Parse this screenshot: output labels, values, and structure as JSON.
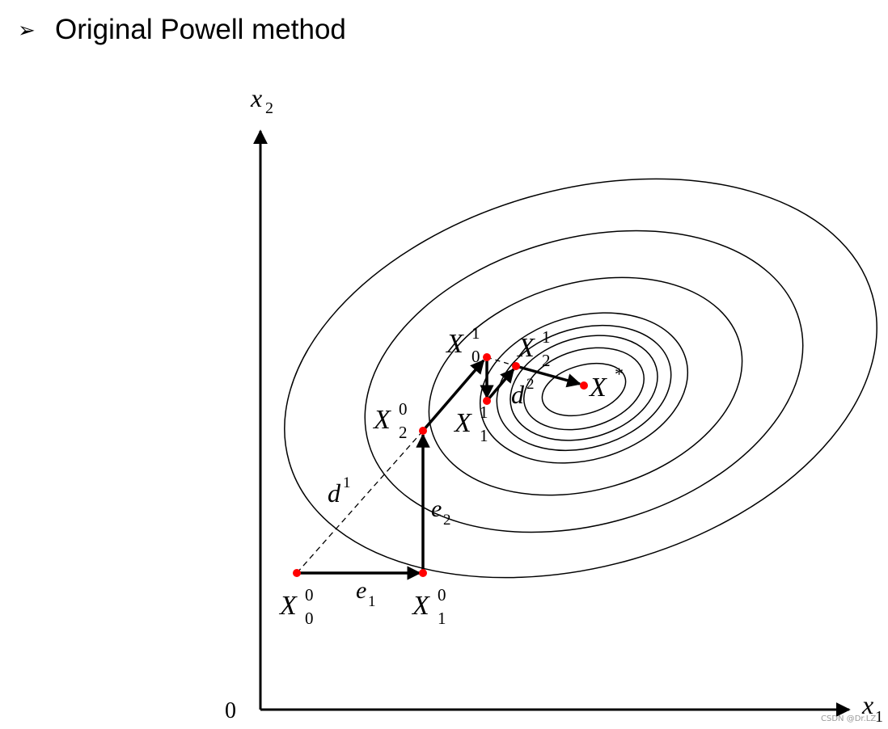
{
  "title": {
    "bullet": "➢",
    "text": "Original Powell method"
  },
  "axes": {
    "origin": "0",
    "x_label": "x",
    "x_sub": "1",
    "y_label": "x",
    "y_sub": "2"
  },
  "points": [
    {
      "id": "X00",
      "base": "X",
      "sup": "0",
      "sub": "0"
    },
    {
      "id": "X10",
      "base": "X",
      "sup": "0",
      "sub": "1"
    },
    {
      "id": "X20",
      "base": "X",
      "sup": "0",
      "sub": "2"
    },
    {
      "id": "X01",
      "base": "X",
      "sup": "1",
      "sub": "0"
    },
    {
      "id": "X11",
      "base": "X",
      "sup": "1",
      "sub": "1"
    },
    {
      "id": "X21",
      "base": "X",
      "sup": "1",
      "sub": "2"
    },
    {
      "id": "Xstar",
      "base": "X",
      "sup": "*",
      "sub": ""
    }
  ],
  "directions": {
    "e1": {
      "base": "e",
      "sub": "1"
    },
    "e2": {
      "base": "e",
      "sub": "2"
    },
    "d1": {
      "base": "d",
      "sup": "1"
    },
    "d2": {
      "base": "d",
      "sup": "2"
    }
  },
  "watermark": "CSDN @Dr.LZ",
  "colors": {
    "point": "#ff0000",
    "stroke": "#000000"
  }
}
